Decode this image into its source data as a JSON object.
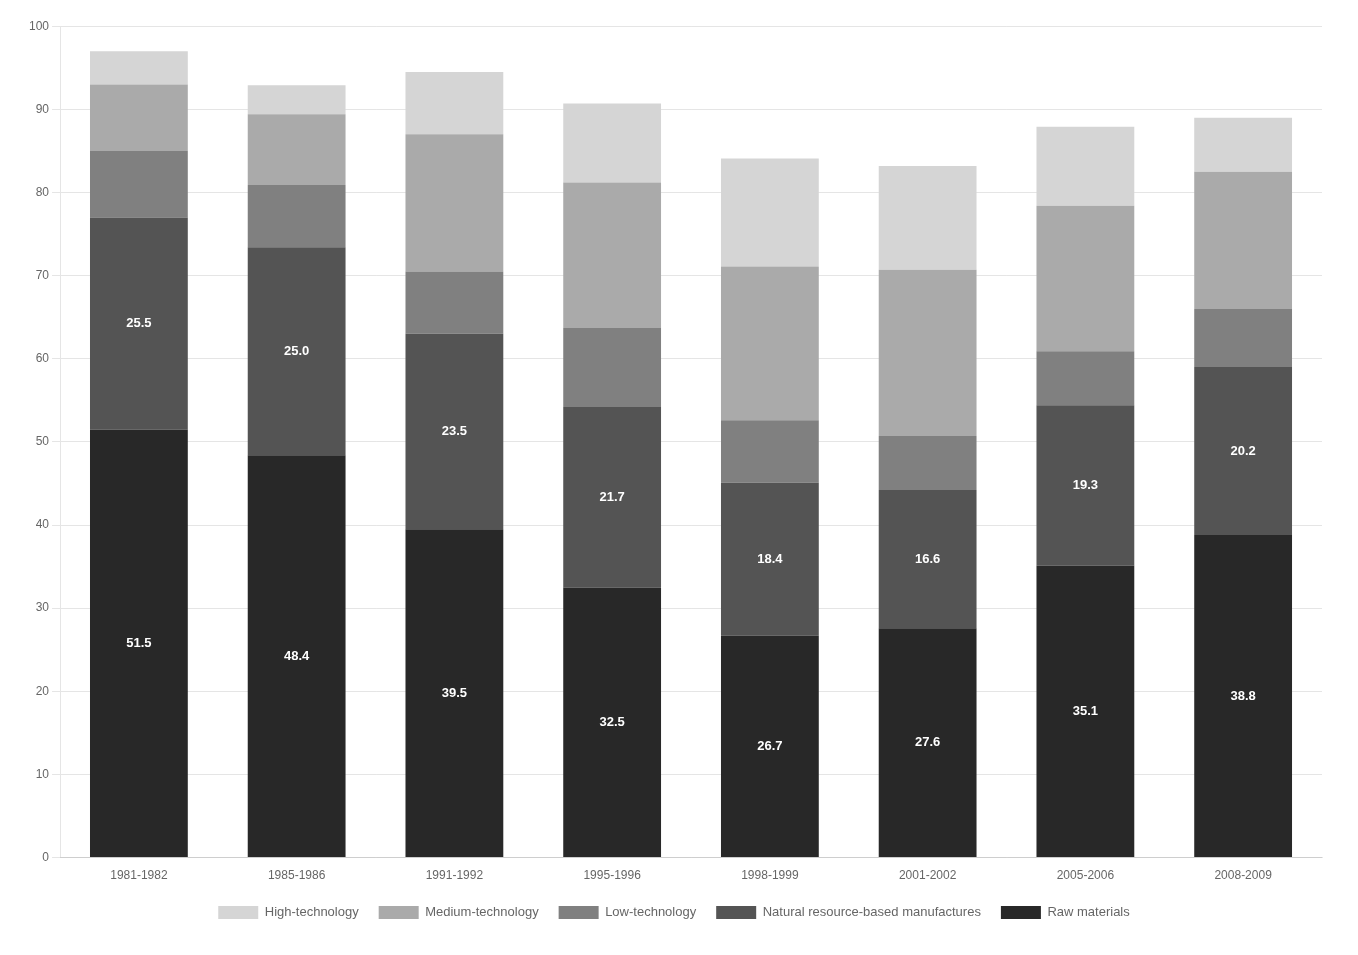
{
  "chart_data": {
    "type": "bar",
    "stacked": true,
    "categories": [
      "1981-1982",
      "1985-1986",
      "1991-1992",
      "1995-1996",
      "1998-1999",
      "2001-2002",
      "2005-2006",
      "2008-2009"
    ],
    "series": [
      {
        "name": "Raw materials",
        "color": "#282828",
        "data_labels": true,
        "values": [
          51.5,
          48.4,
          39.5,
          32.5,
          26.7,
          27.6,
          35.1,
          38.8
        ]
      },
      {
        "name": "Natural resource-based manufactures",
        "color": "#545454",
        "data_labels": true,
        "values": [
          25.5,
          25.0,
          23.5,
          21.7,
          18.4,
          16.6,
          19.3,
          20.2
        ],
        "value_labels": [
          "25.5",
          "25.0",
          "23.5",
          "21.7",
          "18.4",
          "16.6",
          "19.3",
          "20.2"
        ]
      },
      {
        "name": "Low-technology",
        "color": "#808080",
        "values": [
          8.0,
          7.5,
          7.5,
          9.5,
          7.5,
          6.5,
          6.5,
          7.0
        ]
      },
      {
        "name": "Medium-technology",
        "color": "#aaaaaa",
        "values": [
          8.0,
          8.5,
          16.5,
          17.5,
          18.5,
          20.0,
          17.5,
          16.5
        ]
      },
      {
        "name": "High-technology",
        "color": "#d5d5d5",
        "values": [
          4.0,
          3.5,
          7.5,
          9.5,
          13.0,
          12.5,
          9.5,
          6.5
        ]
      }
    ],
    "ylim": [
      0,
      100
    ],
    "yticks": [
      0,
      10,
      20,
      30,
      40,
      50,
      60,
      70,
      80,
      90,
      100
    ],
    "grid": "y",
    "legend": "bottom"
  }
}
